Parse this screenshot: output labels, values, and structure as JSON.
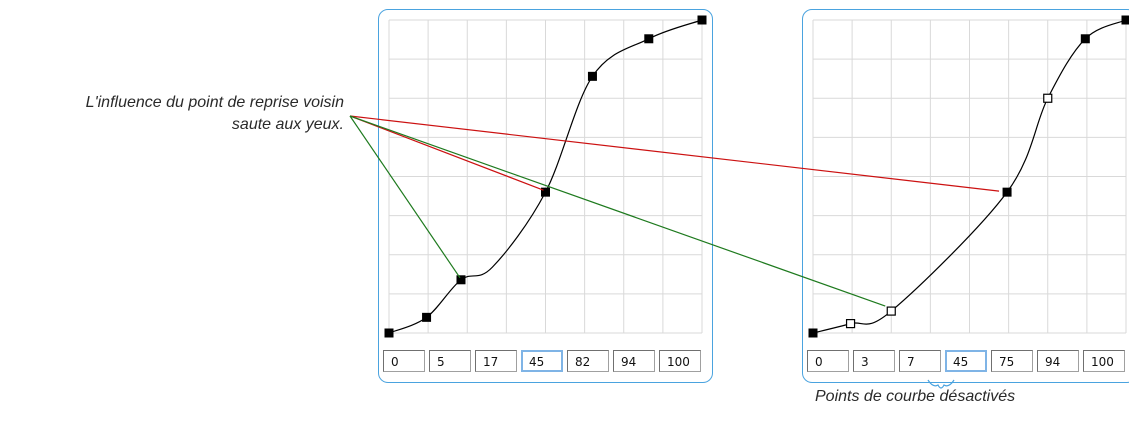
{
  "annotations": {
    "left_caption": [
      "L'influence du point de reprise voisin",
      "saute aux yeux."
    ],
    "right_caption": "Points de courbe désactivés"
  },
  "colors": {
    "panel_border": "#4aa3df",
    "grid": "#d9d9d9",
    "curve": "#000000",
    "leader_red": "#cc1111",
    "leader_green": "#1e7a1e",
    "active_field_border": "#7fb4e6"
  },
  "panels": [
    {
      "fields": [
        "0",
        "5",
        "17",
        "45",
        "82",
        "94",
        "100"
      ],
      "active_field": 3,
      "curve_points": [
        {
          "x": 0,
          "y": 0,
          "enabled": true
        },
        {
          "x": 12,
          "y": 5,
          "enabled": true
        },
        {
          "x": 23,
          "y": 17,
          "enabled": true
        },
        {
          "x": 33,
          "y": 21,
          "enabled": false
        },
        {
          "x": 50,
          "y": 45,
          "enabled": true
        },
        {
          "x": 65,
          "y": 82,
          "enabled": true
        },
        {
          "x": 83,
          "y": 94,
          "enabled": true
        },
        {
          "x": 100,
          "y": 100,
          "enabled": true
        }
      ]
    },
    {
      "fields": [
        "0",
        "3",
        "7",
        "45",
        "75",
        "94",
        "100"
      ],
      "active_field": 3,
      "curve_points": [
        {
          "x": 0,
          "y": 0,
          "enabled": true
        },
        {
          "x": 12,
          "y": 3,
          "enabled": false
        },
        {
          "x": 25,
          "y": 7,
          "enabled": false
        },
        {
          "x": 62,
          "y": 45,
          "enabled": true
        },
        {
          "x": 75,
          "y": 75,
          "enabled": false
        },
        {
          "x": 87,
          "y": 94,
          "enabled": true
        },
        {
          "x": 100,
          "y": 100,
          "enabled": true
        }
      ]
    }
  ]
}
